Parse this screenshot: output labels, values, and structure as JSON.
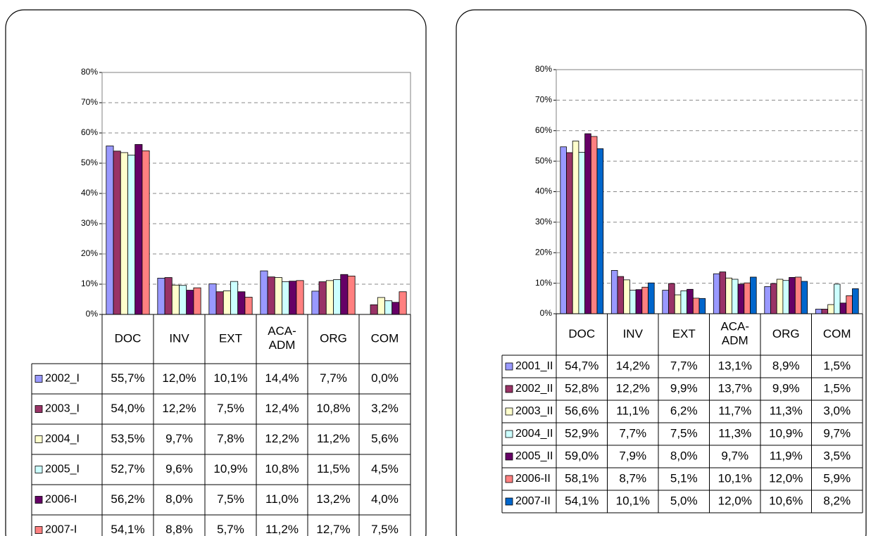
{
  "chart_data": [
    {
      "type": "bar",
      "grid": true,
      "categories": [
        "DOC",
        "INV",
        "EXT",
        "ACA- ADM",
        "ORG",
        "COM"
      ],
      "ylim": [
        0,
        80
      ],
      "yticks": [
        {
          "value": 0,
          "label": "0%"
        },
        {
          "value": 10,
          "label": "10%"
        },
        {
          "value": 20,
          "label": "20%"
        },
        {
          "value": 30,
          "label": "30%"
        },
        {
          "value": 40,
          "label": "40%"
        },
        {
          "value": 50,
          "label": "50%"
        },
        {
          "value": 60,
          "label": "60%"
        },
        {
          "value": 70,
          "label": "70%"
        },
        {
          "value": 80,
          "label": "80%"
        }
      ],
      "series": [
        {
          "name": "2002_I",
          "color": "#9999ff",
          "values": [
            55.7,
            12.0,
            10.1,
            14.4,
            7.7,
            0.0
          ],
          "value_labels": [
            "55,7%",
            "12,0%",
            "10,1%",
            "14,4%",
            "7,7%",
            "0,0%"
          ]
        },
        {
          "name": "2003_I",
          "color": "#993366",
          "values": [
            54.0,
            12.2,
            7.5,
            12.4,
            10.8,
            3.2
          ],
          "value_labels": [
            "54,0%",
            "12,2%",
            "7,5%",
            "12,4%",
            "10,8%",
            "3,2%"
          ]
        },
        {
          "name": "2004_I",
          "color": "#ffffcc",
          "values": [
            53.5,
            9.7,
            7.8,
            12.2,
            11.2,
            5.6
          ],
          "value_labels": [
            "53,5%",
            "9,7%",
            "7,8%",
            "12,2%",
            "11,2%",
            "5,6%"
          ]
        },
        {
          "name": "2005_I",
          "color": "#ccffff",
          "values": [
            52.7,
            9.6,
            10.9,
            10.8,
            11.5,
            4.5
          ],
          "value_labels": [
            "52,7%",
            "9,6%",
            "10,9%",
            "10,8%",
            "11,5%",
            "4,5%"
          ]
        },
        {
          "name": "2006-I",
          "color": "#660066",
          "values": [
            56.2,
            8.0,
            7.5,
            11.0,
            13.2,
            4.0
          ],
          "value_labels": [
            "56,2%",
            "8,0%",
            "7,5%",
            "11,0%",
            "13,2%",
            "4,0%"
          ]
        },
        {
          "name": "2007-I",
          "color": "#ff8080",
          "values": [
            54.1,
            8.8,
            5.7,
            11.2,
            12.7,
            7.5
          ],
          "value_labels": [
            "54,1%",
            "8,8%",
            "5,7%",
            "11,2%",
            "12,7%",
            "7,5%"
          ]
        }
      ]
    },
    {
      "type": "bar",
      "grid": true,
      "categories": [
        "DOC",
        "INV",
        "EXT",
        "ACA- ADM",
        "ORG",
        "COM"
      ],
      "ylim": [
        0,
        80
      ],
      "yticks": [
        {
          "value": 0,
          "label": "0%"
        },
        {
          "value": 10,
          "label": "10%"
        },
        {
          "value": 20,
          "label": "20%"
        },
        {
          "value": 30,
          "label": "30%"
        },
        {
          "value": 40,
          "label": "40%"
        },
        {
          "value": 50,
          "label": "50%"
        },
        {
          "value": 60,
          "label": "60%"
        },
        {
          "value": 70,
          "label": "70%"
        },
        {
          "value": 80,
          "label": "80%"
        }
      ],
      "series": [
        {
          "name": "2001_II",
          "color": "#9999ff",
          "values": [
            54.7,
            14.2,
            7.7,
            13.1,
            8.9,
            1.5
          ],
          "value_labels": [
            "54,7%",
            "14,2%",
            "7,7%",
            "13,1%",
            "8,9%",
            "1,5%"
          ]
        },
        {
          "name": "2002_II",
          "color": "#993366",
          "values": [
            52.8,
            12.2,
            9.9,
            13.7,
            9.9,
            1.5
          ],
          "value_labels": [
            "52,8%",
            "12,2%",
            "9,9%",
            "13,7%",
            "9,9%",
            "1,5%"
          ]
        },
        {
          "name": "2003_II",
          "color": "#ffffcc",
          "values": [
            56.6,
            11.1,
            6.2,
            11.7,
            11.3,
            3.0
          ],
          "value_labels": [
            "56,6%",
            "11,1%",
            "6,2%",
            "11,7%",
            "11,3%",
            "3,0%"
          ]
        },
        {
          "name": "2004_II",
          "color": "#ccffff",
          "values": [
            52.9,
            7.7,
            7.5,
            11.3,
            10.9,
            9.7
          ],
          "value_labels": [
            "52,9%",
            "7,7%",
            "7,5%",
            "11,3%",
            "10,9%",
            "9,7%"
          ]
        },
        {
          "name": "2005_II",
          "color": "#660066",
          "values": [
            59.0,
            7.9,
            8.0,
            9.7,
            11.9,
            3.5
          ],
          "value_labels": [
            "59,0%",
            "7,9%",
            "8,0%",
            "9,7%",
            "11,9%",
            "3,5%"
          ]
        },
        {
          "name": "2006-II",
          "color": "#ff8080",
          "values": [
            58.1,
            8.7,
            5.1,
            10.1,
            12.0,
            5.9
          ],
          "value_labels": [
            "58,1%",
            "8,7%",
            "5,1%",
            "10,1%",
            "12,0%",
            "5,9%"
          ]
        },
        {
          "name": "2007-II",
          "color": "#0066cc",
          "values": [
            54.1,
            10.1,
            5.0,
            12.0,
            10.6,
            8.2
          ],
          "value_labels": [
            "54,1%",
            "10,1%",
            "5,0%",
            "12,0%",
            "10,6%",
            "8,2%"
          ]
        }
      ]
    }
  ]
}
